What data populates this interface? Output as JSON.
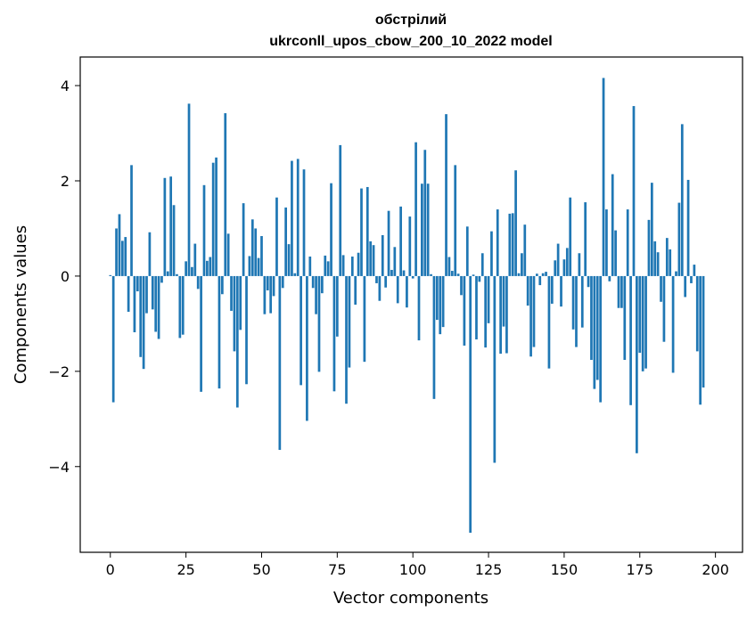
{
  "chart_data": {
    "type": "bar",
    "title": "обстрілий",
    "subtitle": "ukrconll_upos_cbow_200_10_2022 model",
    "xlabel": "Vector components",
    "ylabel": "Components values",
    "xlim": [
      -9.95,
      208.95
    ],
    "ylim": [
      -5.8,
      4.6
    ],
    "xticks": [
      0,
      25,
      50,
      75,
      100,
      125,
      150,
      175,
      200
    ],
    "yticks": [
      -4,
      -2,
      0,
      2,
      4
    ],
    "ytick_labels": [
      "−4",
      "−2",
      "0",
      "2",
      "4"
    ],
    "bar_color": "#1f77b4",
    "values": [
      0.02,
      -2.65,
      1.0,
      1.3,
      0.74,
      0.82,
      -0.75,
      2.33,
      -1.18,
      -0.32,
      -1.7,
      -1.95,
      -0.78,
      0.92,
      -0.7,
      -1.17,
      -1.32,
      -0.14,
      2.06,
      0.1,
      2.09,
      1.49,
      0.04,
      -1.3,
      -1.23,
      0.31,
      3.62,
      0.19,
      0.68,
      -0.27,
      -2.43,
      1.91,
      0.32,
      0.4,
      2.38,
      2.49,
      -2.36,
      -0.38,
      3.42,
      0.89,
      -0.73,
      -1.58,
      -2.76,
      -1.13,
      1.53,
      -2.27,
      0.42,
      1.19,
      1.0,
      0.38,
      0.84,
      -0.8,
      -0.3,
      -0.78,
      -0.42,
      1.65,
      -3.65,
      -0.25,
      1.44,
      0.67,
      2.42,
      0.06,
      2.46,
      -2.29,
      2.24,
      -3.04,
      0.41,
      -0.25,
      -0.8,
      -2.01,
      -0.36,
      0.43,
      0.31,
      1.95,
      -2.42,
      -1.27,
      2.75,
      0.44,
      -2.68,
      -1.92,
      0.41,
      -0.6,
      0.49,
      1.84,
      -1.8,
      1.87,
      0.73,
      0.65,
      -0.15,
      -0.52,
      0.86,
      -0.24,
      1.37,
      0.13,
      0.61,
      -0.57,
      1.46,
      0.12,
      -0.66,
      1.25,
      -0.05,
      2.81,
      -1.35,
      1.94,
      2.65,
      1.94,
      0.04,
      -2.58,
      -0.92,
      -1.22,
      -1.07,
      3.4,
      0.4,
      0.11,
      2.33,
      0.05,
      -0.4,
      -1.46,
      1.04,
      -5.39,
      0.03,
      -1.33,
      -0.12,
      0.48,
      -1.5,
      -0.99,
      0.94,
      -3.92,
      1.4,
      -1.63,
      -1.06,
      -1.62,
      1.31,
      1.32,
      2.22,
      0.06,
      0.48,
      1.08,
      -0.62,
      -1.69,
      -1.49,
      0.05,
      -0.19,
      0.06,
      0.09,
      -1.94,
      -0.58,
      0.33,
      0.68,
      -0.64,
      0.35,
      0.59,
      1.65,
      -1.12,
      -1.49,
      0.48,
      -1.08,
      1.55,
      -0.23,
      -1.76,
      -2.37,
      -2.18,
      -2.65,
      4.16,
      1.4,
      -0.11,
      2.14,
      0.96,
      -0.67,
      -0.67,
      -1.76,
      1.4,
      -2.71,
      3.57,
      -3.72,
      -1.61,
      -2.0,
      -1.94,
      1.18,
      1.96,
      0.73,
      0.5,
      -0.54,
      -1.38,
      0.8,
      0.56,
      -2.03,
      0.1,
      1.54,
      3.19,
      -0.44,
      2.02,
      -0.15,
      0.24,
      -1.58,
      -2.7,
      -2.34
    ]
  }
}
